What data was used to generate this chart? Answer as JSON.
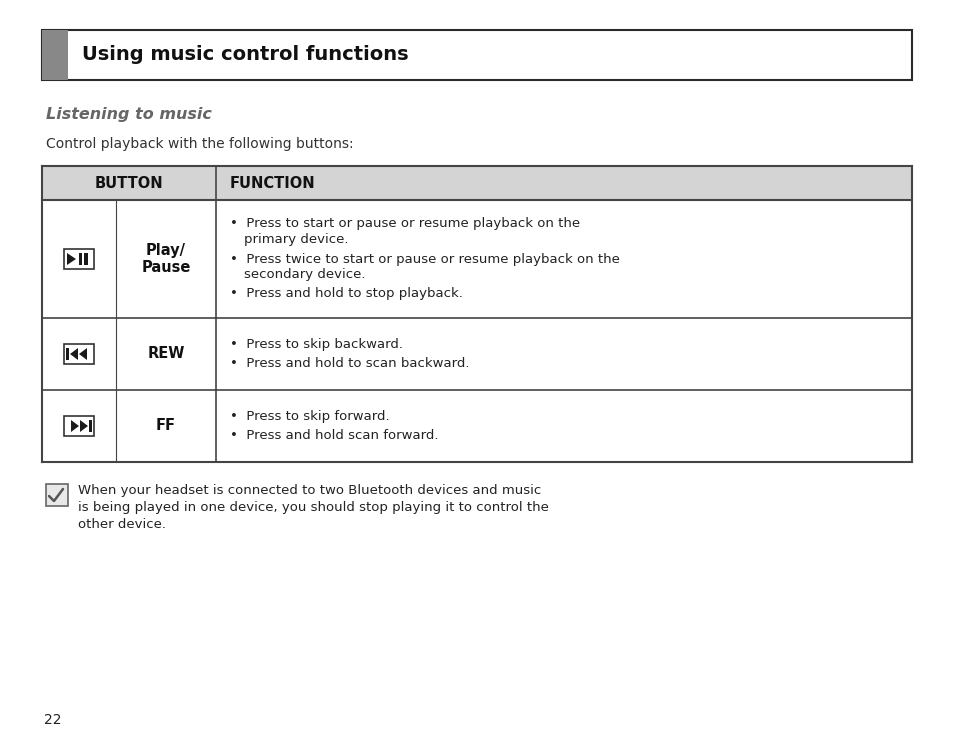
{
  "page_bg": "#ffffff",
  "title_box_border": "#2a2a2a",
  "title_box_fill": "#ffffff",
  "title_sidebar_color": "#888888",
  "title_text": "Using music control functions",
  "title_text_color": "#111111",
  "section_heading": "Listening to music",
  "section_heading_color": "#666666",
  "intro_text": "Control playback with the following buttons:",
  "table_header_bg": "#d4d4d4",
  "table_border_color": "#444444",
  "table_header_button": "BUTTON",
  "table_header_function": "FUNCTION",
  "rows": [
    {
      "icon": "play_pause",
      "button_label": "Play/\nPause",
      "bullet_lines": [
        [
          "Press to start or pause or resume playback on the",
          "primary device."
        ],
        [
          "Press twice to start or pause or resume playback on the",
          "secondary device."
        ],
        [
          "Press and hold to stop playback."
        ]
      ]
    },
    {
      "icon": "rew",
      "button_label": "REW",
      "bullet_lines": [
        [
          "Press to skip backward."
        ],
        [
          "Press and hold to scan backward."
        ]
      ]
    },
    {
      "icon": "ff",
      "button_label": "FF",
      "bullet_lines": [
        [
          "Press to skip forward."
        ],
        [
          "Press and hold scan forward."
        ]
      ]
    }
  ],
  "note_text_lines": [
    "When your headset is connected to two Bluetooth devices and music",
    "is being played in one device, you should stop playing it to control the",
    "other device."
  ],
  "page_number": "22"
}
